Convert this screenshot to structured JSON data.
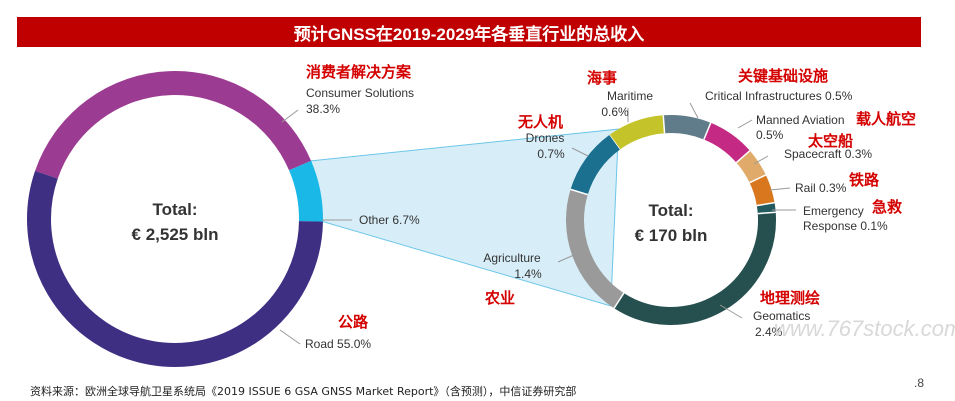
{
  "title": "预计GNSS在2019-2029年各垂直行业的总收入",
  "source": "资料来源：欧洲全球导航卫星系统局《2019 ISSUE 6 GSA GNSS Market Report》（含预测），中信证券研究部",
  "page_number": ".8",
  "watermark": "www.767stock.com",
  "chart_data": [
    {
      "type": "pie",
      "total_label": "Total:",
      "total_value": "€ 2,525 bln",
      "slices": [
        {
          "name": "Consumer Solutions",
          "value": 38.3,
          "label": "Consumer Solutions",
          "pct": "38.3%",
          "cn": "消费者解决方案",
          "color": "#9c3b92"
        },
        {
          "name": "Other",
          "value": 6.7,
          "label": "Other 6.7%",
          "pct": "",
          "cn": "",
          "color": "#19b8e6"
        },
        {
          "name": "Road",
          "value": 55.0,
          "label": "Road 55.0%",
          "pct": "",
          "cn": "公路",
          "color": "#3f2f83"
        }
      ]
    },
    {
      "type": "pie",
      "total_label": "Total:",
      "total_value": "€ 170 bln",
      "slices": [
        {
          "name": "Maritime",
          "value": 0.6,
          "label": "Maritime",
          "pct": "0.6%",
          "cn": "海事",
          "color": "#c4c42a"
        },
        {
          "name": "Critical Infrastructures",
          "value": 0.5,
          "label": "Critical Infrastructures 0.5%",
          "pct": "",
          "cn": "关键基础设施",
          "color": "#607b8a"
        },
        {
          "name": "Manned Aviation",
          "value": 0.5,
          "label": "Manned Aviation",
          "pct": "0.5%",
          "cn": "载人航空",
          "color": "#c42a83"
        },
        {
          "name": "Spacecraft",
          "value": 0.3,
          "label": "Spacecraft 0.3%",
          "pct": "",
          "cn": "太空船",
          "color": "#e0ab6a"
        },
        {
          "name": "Rail",
          "value": 0.3,
          "label": "Rail 0.3%",
          "pct": "",
          "cn": "铁路",
          "color": "#d9771e"
        },
        {
          "name": "Emergency Response",
          "value": 0.1,
          "label": "Emergency",
          "pct": "Response 0.1%",
          "cn": "急救",
          "color": "#235a5e"
        },
        {
          "name": "Geomatics",
          "value": 2.4,
          "label": "Geomatics",
          "pct": "2.4%",
          "cn": "地理测绘",
          "color": "#26504f"
        },
        {
          "name": "Agriculture",
          "value": 1.4,
          "label": "Agriculture",
          "pct": "1.4%",
          "cn": "农业",
          "color": "#9a9a9a"
        },
        {
          "name": "Drones",
          "value": 0.7,
          "label": "Drones",
          "pct": "0.7%",
          "cn": "无人机",
          "color": "#1b6f8f"
        }
      ]
    }
  ]
}
